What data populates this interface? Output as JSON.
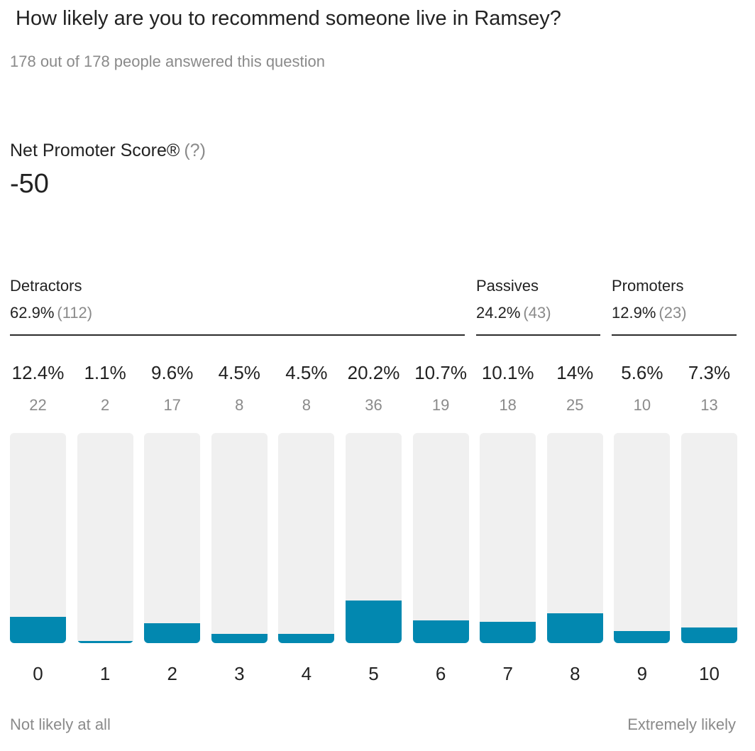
{
  "question": "How likely are you to recommend someone live in Ramsey?",
  "answered_text": "178 out of 178 people answered this question",
  "nps": {
    "label": "Net Promoter Score®",
    "help": "(?)",
    "value": "-50"
  },
  "groups": [
    {
      "name": "Detractors",
      "percent": "62.9%",
      "count": "(112)"
    },
    {
      "name": "Passives",
      "percent": "24.2%",
      "count": "(43)"
    },
    {
      "name": "Promoters",
      "percent": "12.9%",
      "count": "(23)"
    }
  ],
  "colors": {
    "bar_fill": "#0288b0",
    "bar_track": "#f0f0f0",
    "text": "#222222",
    "muted": "#8a8a8a"
  },
  "footer": {
    "left": "Not likely at all",
    "right": "Extremely likely"
  },
  "chart_data": {
    "type": "bar",
    "title": "How likely are you to recommend someone live in Ramsey?",
    "categories": [
      "0",
      "1",
      "2",
      "3",
      "4",
      "5",
      "6",
      "7",
      "8",
      "9",
      "10"
    ],
    "values": [
      22,
      2,
      17,
      8,
      8,
      36,
      19,
      18,
      25,
      10,
      13
    ],
    "percent_labels": [
      "12.4%",
      "1.1%",
      "9.6%",
      "4.5%",
      "4.5%",
      "20.2%",
      "10.7%",
      "10.1%",
      "14%",
      "5.6%",
      "7.3%"
    ],
    "count_labels": [
      "22",
      "2",
      "17",
      "8",
      "8",
      "36",
      "19",
      "18",
      "25",
      "10",
      "13"
    ],
    "ylim": [
      0,
      178
    ],
    "xlabel": "",
    "ylabel": ""
  }
}
